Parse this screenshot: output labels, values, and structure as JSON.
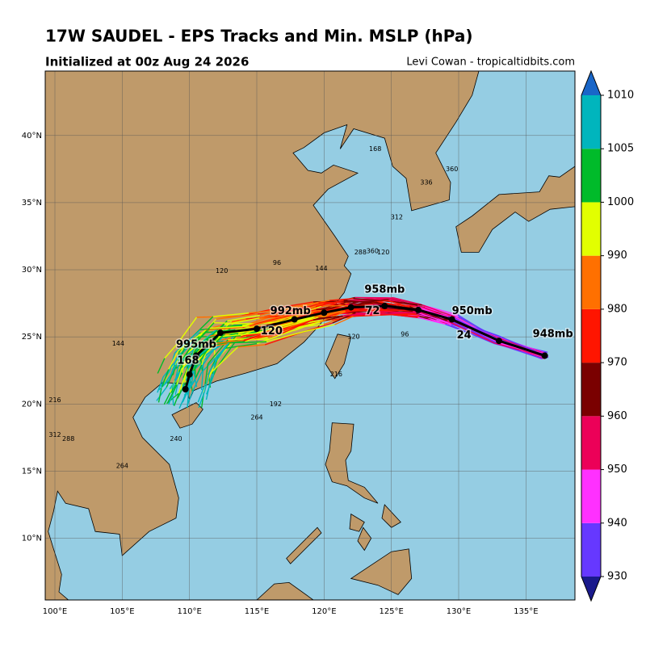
{
  "header": {
    "title": "17W SAUDEL - EPS Tracks and Min. MSLP (hPa)",
    "subtitle": "Initialized at 00z Aug 24 2026",
    "credit": "Levi Cowan - tropicaltidbits.com"
  },
  "map": {
    "lonlim": [
      99.28,
      138.64
    ],
    "latlim": [
      5.4,
      44.8
    ],
    "lonticks": [
      {
        "value": 100,
        "label": "100°E"
      },
      {
        "value": 105,
        "label": "105°E"
      },
      {
        "value": 110,
        "label": "110°E"
      },
      {
        "value": 115,
        "label": "115°E"
      },
      {
        "value": 120,
        "label": "120°E"
      },
      {
        "value": 125,
        "label": "125°E"
      },
      {
        "value": 130,
        "label": "130°E"
      },
      {
        "value": 135,
        "label": "135°E"
      }
    ],
    "latticks": [
      {
        "value": 10,
        "label": "10°N"
      },
      {
        "value": 15,
        "label": "15°N"
      },
      {
        "value": 20,
        "label": "20°N"
      },
      {
        "value": 25,
        "label": "25°N"
      },
      {
        "value": 30,
        "label": "30°N"
      },
      {
        "value": 35,
        "label": "35°N"
      },
      {
        "value": 40,
        "label": "40°N"
      }
    ],
    "mean_track_labels": [
      {
        "text": "948mb",
        "lon": 137.0,
        "lat": 25.2
      },
      {
        "text": "950mb",
        "lon": 131.0,
        "lat": 26.9
      },
      {
        "text": "958mb",
        "lon": 124.5,
        "lat": 28.5
      },
      {
        "text": "992mb",
        "lon": 117.5,
        "lat": 26.9
      },
      {
        "text": "995mb",
        "lon": 110.5,
        "lat": 24.4
      },
      {
        "text": "24",
        "lon": 130.4,
        "lat": 25.1
      },
      {
        "text": "72",
        "lon": 123.6,
        "lat": 26.9
      },
      {
        "text": "120",
        "lon": 116.1,
        "lat": 25.4
      },
      {
        "text": "168",
        "lon": 109.9,
        "lat": 23.2
      }
    ],
    "hour_labels": [
      {
        "text": "168",
        "lon": 123.8,
        "lat": 39.0
      },
      {
        "text": "360",
        "lon": 129.5,
        "lat": 37.5
      },
      {
        "text": "336",
        "lon": 127.6,
        "lat": 36.5
      },
      {
        "text": "312",
        "lon": 125.4,
        "lat": 33.9
      },
      {
        "text": "288",
        "lon": 122.7,
        "lat": 31.3
      },
      {
        "text": "360",
        "lon": 123.6,
        "lat": 31.4
      },
      {
        "text": "120",
        "lon": 124.4,
        "lat": 31.3
      },
      {
        "text": "96",
        "lon": 116.5,
        "lat": 30.5
      },
      {
        "text": "144",
        "lon": 119.8,
        "lat": 30.1
      },
      {
        "text": "120",
        "lon": 112.4,
        "lat": 29.9
      },
      {
        "text": "144",
        "lon": 104.7,
        "lat": 24.5
      },
      {
        "text": "216",
        "lon": 100.0,
        "lat": 20.3
      },
      {
        "text": "312",
        "lon": 100.0,
        "lat": 17.7
      },
      {
        "text": "288",
        "lon": 101.0,
        "lat": 17.4
      },
      {
        "text": "264",
        "lon": 105.0,
        "lat": 15.4
      },
      {
        "text": "240",
        "lon": 109.0,
        "lat": 17.4
      },
      {
        "text": "264",
        "lon": 115.0,
        "lat": 19.0
      },
      {
        "text": "192",
        "lon": 116.4,
        "lat": 20.0
      },
      {
        "text": "216",
        "lon": 120.9,
        "lat": 22.2
      },
      {
        "text": "120",
        "lon": 122.2,
        "lat": 25.0
      },
      {
        "text": "96",
        "lon": 126.0,
        "lat": 25.2
      }
    ],
    "colorbar": {
      "ticks": [
        930,
        940,
        950,
        960,
        970,
        980,
        990,
        1000,
        1005,
        1010
      ],
      "colors": [
        "#6638ff",
        "#ff30ff",
        "#ec0058",
        "#7a0000",
        "#ff1500",
        "#ff7000",
        "#e2ff00",
        "#00bb2a",
        "#00b5bd"
      ],
      "under_color": "#1a1a8c",
      "over_color": "#1966c8"
    }
  }
}
